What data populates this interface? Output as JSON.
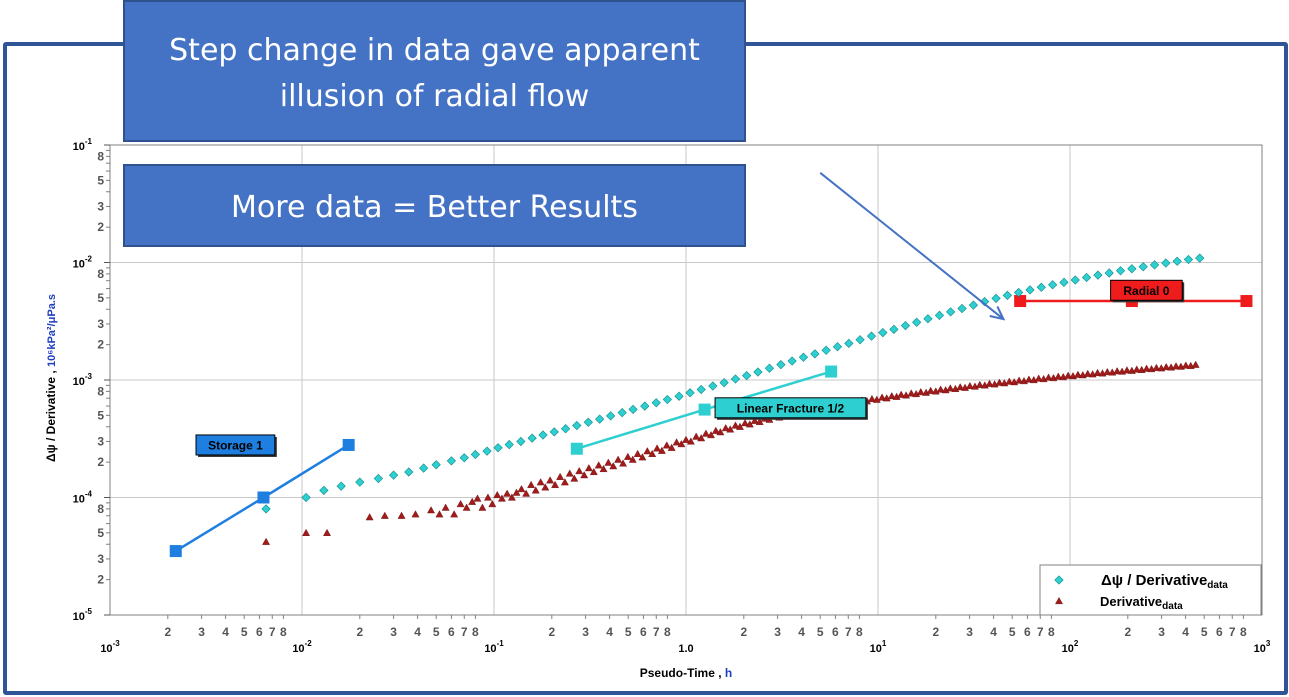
{
  "annotations": {
    "callout_main": "Step change in data gave apparent illusion of radial flow",
    "callout_secondary": "More data = Better Results"
  },
  "chart_data": {
    "type": "scatter",
    "x_scale": "log",
    "y_scale": "log",
    "xlim": [
      0.001,
      1000
    ],
    "ylim": [
      1e-05,
      0.1
    ],
    "grid": true,
    "title": "",
    "xlabel": "Pseudo-Time , h",
    "xlabel_main": "Pseudo-Time ,",
    "xlabel_unit": "h",
    "ylabel": "Δψ / Derivative , 10⁶kPa²/μPa.s",
    "ylabel_main": "Δψ / Derivative ,",
    "ylabel_unit": "10⁶kPa²/μPa.s",
    "x_major_ticks": [
      {
        "value": 0.001,
        "base": "10",
        "exp": "-3"
      },
      {
        "value": 0.01,
        "base": "10",
        "exp": "-2"
      },
      {
        "value": 0.1,
        "base": "10",
        "exp": "-1"
      },
      {
        "value": 1,
        "base": "1.0",
        "exp": ""
      },
      {
        "value": 10,
        "base": "10",
        "exp": "1"
      },
      {
        "value": 100,
        "base": "10",
        "exp": "2"
      },
      {
        "value": 1000,
        "base": "10",
        "exp": "3"
      }
    ],
    "y_major_ticks": [
      {
        "value": 1e-05,
        "base": "10",
        "exp": "-5"
      },
      {
        "value": 0.0001,
        "base": "10",
        "exp": "-4"
      },
      {
        "value": 0.001,
        "base": "10",
        "exp": "-3"
      },
      {
        "value": 0.01,
        "base": "10",
        "exp": "-2"
      },
      {
        "value": 0.1,
        "base": "10",
        "exp": "-1"
      }
    ],
    "x_minor_tick_digits": [
      "2",
      "3",
      "4",
      "5",
      "6",
      "7",
      "8"
    ],
    "y_minor_tick_digits": [
      "2",
      "3",
      "5",
      "8"
    ],
    "legend": {
      "position": "bottom-right",
      "entries": [
        {
          "label": "Δψ / Derivative",
          "subscript": "data",
          "marker": "diamond",
          "color": "#2ecfd0"
        },
        {
          "label": "Derivative",
          "subscript": "data",
          "marker": "triangle",
          "color": "#a11b1b"
        }
      ]
    },
    "series": [
      {
        "name": "Δψ / Derivative data",
        "marker": "diamond",
        "color": "#2ecfd0",
        "points": [
          [
            0.0065,
            8e-05
          ],
          [
            0.0105,
            0.0001
          ],
          [
            0.013,
            0.000115
          ],
          [
            0.016,
            0.000125
          ],
          [
            0.02,
            0.000135
          ],
          [
            0.025,
            0.000145
          ],
          [
            0.03,
            0.000155
          ],
          [
            0.036,
            0.000165
          ],
          [
            0.043,
            0.000178
          ],
          [
            0.05,
            0.00019
          ],
          [
            0.06,
            0.000205
          ],
          [
            0.07,
            0.000218
          ],
          [
            0.08,
            0.000232
          ],
          [
            0.092,
            0.000248
          ],
          [
            0.105,
            0.000265
          ],
          [
            0.12,
            0.000282
          ],
          [
            0.138,
            0.0003
          ],
          [
            0.158,
            0.00032
          ],
          [
            0.18,
            0.00034
          ],
          [
            0.206,
            0.000362
          ],
          [
            0.236,
            0.000385
          ],
          [
            0.27,
            0.00041
          ],
          [
            0.31,
            0.000437
          ],
          [
            0.355,
            0.000465
          ],
          [
            0.405,
            0.000495
          ],
          [
            0.465,
            0.000528
          ],
          [
            0.53,
            0.000562
          ],
          [
            0.61,
            0.0006
          ],
          [
            0.7,
            0.00064
          ],
          [
            0.8,
            0.000682
          ],
          [
            0.92,
            0.000728
          ],
          [
            1.05,
            0.000778
          ],
          [
            1.2,
            0.00083
          ],
          [
            1.38,
            0.000888
          ],
          [
            1.58,
            0.00095
          ],
          [
            1.81,
            0.00102
          ],
          [
            2.07,
            0.00109
          ],
          [
            2.37,
            0.00117
          ],
          [
            2.72,
            0.00126
          ],
          [
            3.12,
            0.00135
          ],
          [
            3.57,
            0.00145
          ],
          [
            4.09,
            0.00156
          ],
          [
            4.69,
            0.00167
          ],
          [
            5.37,
            0.00179
          ],
          [
            6.15,
            0.00192
          ],
          [
            7.05,
            0.00205
          ],
          [
            8.07,
            0.0022
          ],
          [
            9.25,
            0.00236
          ],
          [
            10.6,
            0.00253
          ],
          [
            12.1,
            0.0027
          ],
          [
            13.9,
            0.0029
          ],
          [
            15.9,
            0.0031
          ],
          [
            18.2,
            0.00332
          ],
          [
            20.9,
            0.00355
          ],
          [
            23.9,
            0.0038
          ],
          [
            27.4,
            0.00406
          ],
          [
            31.4,
            0.00434
          ],
          [
            35.9,
            0.00464
          ],
          [
            41.2,
            0.00495
          ],
          [
            47.2,
            0.00525
          ],
          [
            54,
            0.00555
          ],
          [
            61.9,
            0.00585
          ],
          [
            70.9,
            0.00615
          ],
          [
            81.2,
            0.00646
          ],
          [
            93,
            0.00678
          ],
          [
            106.5,
            0.0071
          ],
          [
            122,
            0.00745
          ],
          [
            139.8,
            0.0078
          ],
          [
            160,
            0.00815
          ],
          [
            183.4,
            0.0085
          ],
          [
            210,
            0.00885
          ],
          [
            240.6,
            0.0092
          ],
          [
            275.6,
            0.00955
          ],
          [
            315.7,
            0.0099
          ],
          [
            361.6,
            0.01025
          ],
          [
            414,
            0.0106
          ],
          [
            474,
            0.0109
          ]
        ]
      },
      {
        "name": "Derivative data",
        "marker": "triangle",
        "color": "#a11b1b",
        "points": [
          [
            0.0065,
            4.2e-05
          ],
          [
            0.0105,
            5e-05
          ],
          [
            0.0135,
            5e-05
          ],
          [
            0.0225,
            6.8e-05
          ],
          [
            0.027,
            7e-05
          ],
          [
            0.033,
            7e-05
          ],
          [
            0.039,
            7.2e-05
          ],
          [
            0.047,
            7.8e-05
          ],
          [
            0.052,
            7.2e-05
          ],
          [
            0.056,
            8.2e-05
          ],
          [
            0.062,
            7.2e-05
          ],
          [
            0.067,
            8.8e-05
          ],
          [
            0.072,
            8.2e-05
          ],
          [
            0.077,
            9.2e-05
          ],
          [
            0.082,
            9.8e-05
          ],
          [
            0.087,
            8.2e-05
          ],
          [
            0.093,
            0.0001
          ],
          [
            0.098,
            8.8e-05
          ],
          [
            0.104,
            0.000105
          ],
          [
            0.11,
            9.8e-05
          ],
          [
            0.117,
            0.000108
          ],
          [
            0.124,
            0.0001
          ],
          [
            0.131,
            0.00011
          ],
          [
            0.139,
            0.000118
          ],
          [
            0.147,
            0.000108
          ],
          [
            0.156,
            0.000128
          ],
          [
            0.165,
            0.000115
          ],
          [
            0.175,
            0.000135
          ],
          [
            0.185,
            0.000122
          ],
          [
            0.196,
            0.00014
          ],
          [
            0.208,
            0.000128
          ],
          [
            0.221,
            0.00015
          ],
          [
            0.234,
            0.000135
          ],
          [
            0.248,
            0.00016
          ],
          [
            0.262,
            0.000145
          ],
          [
            0.278,
            0.000168
          ],
          [
            0.295,
            0.000155
          ],
          [
            0.312,
            0.000178
          ],
          [
            0.331,
            0.000165
          ],
          [
            0.351,
            0.000188
          ],
          [
            0.372,
            0.000175
          ],
          [
            0.394,
            0.000198
          ],
          [
            0.418,
            0.000185
          ],
          [
            0.443,
            0.00021
          ],
          [
            0.47,
            0.000195
          ],
          [
            0.498,
            0.000222
          ],
          [
            0.528,
            0.00021
          ],
          [
            0.56,
            0.000235
          ],
          [
            0.593,
            0.00022
          ],
          [
            0.629,
            0.000248
          ],
          [
            0.667,
            0.000235
          ],
          [
            0.707,
            0.000262
          ],
          [
            0.749,
            0.00025
          ],
          [
            0.794,
            0.000278
          ],
          [
            0.842,
            0.000265
          ],
          [
            0.893,
            0.000295
          ],
          [
            0.946,
            0.000285
          ],
          [
            1.0,
            0.00031
          ],
          [
            1.06,
            0.0003
          ],
          [
            1.13,
            0.00033
          ],
          [
            1.2,
            0.00032
          ],
          [
            1.27,
            0.00035
          ],
          [
            1.35,
            0.00034
          ],
          [
            1.43,
            0.00037
          ],
          [
            1.51,
            0.00036
          ],
          [
            1.61,
            0.00039
          ],
          [
            1.7,
            0.00038
          ],
          [
            1.81,
            0.00041
          ],
          [
            1.91,
            0.0004
          ],
          [
            2.03,
            0.00043
          ],
          [
            2.15,
            0.00042
          ],
          [
            2.28,
            0.00045
          ],
          [
            2.42,
            0.00044
          ],
          [
            2.57,
            0.00047
          ],
          [
            2.72,
            0.00046
          ],
          [
            2.88,
            0.00049
          ],
          [
            3.06,
            0.00048
          ],
          [
            3.24,
            0.00051
          ],
          [
            3.44,
            0.0005
          ],
          [
            3.64,
            0.00053
          ],
          [
            3.86,
            0.00052
          ],
          [
            4.09,
            0.00055
          ],
          [
            4.34,
            0.00054
          ],
          [
            4.6,
            0.00057
          ],
          [
            4.88,
            0.00056
          ],
          [
            5.18,
            0.00059
          ],
          [
            5.49,
            0.00058
          ],
          [
            5.82,
            0.00061
          ],
          [
            6.17,
            0.0006
          ],
          [
            6.54,
            0.00063
          ],
          [
            6.94,
            0.00062
          ],
          [
            7.35,
            0.00065
          ],
          [
            7.8,
            0.00064
          ],
          [
            8.27,
            0.00067
          ],
          [
            8.77,
            0.00066
          ],
          [
            9.3,
            0.00069
          ],
          [
            9.86,
            0.00068
          ],
          [
            10.5,
            0.00071
          ],
          [
            11.1,
            0.0007
          ],
          [
            11.8,
            0.00073
          ],
          [
            12.5,
            0.00072
          ],
          [
            13.2,
            0.00075
          ],
          [
            14,
            0.00074
          ],
          [
            14.9,
            0.00077
          ],
          [
            15.8,
            0.00076
          ],
          [
            16.7,
            0.00079
          ],
          [
            17.8,
            0.00078
          ],
          [
            18.8,
            0.00081
          ],
          [
            20,
            0.0008
          ],
          [
            21.2,
            0.00083
          ],
          [
            22.5,
            0.00082
          ],
          [
            23.8,
            0.00085
          ],
          [
            25.3,
            0.00084
          ],
          [
            26.8,
            0.00087
          ],
          [
            28.4,
            0.00086
          ],
          [
            30.1,
            0.00089
          ],
          [
            32,
            0.00088
          ],
          [
            33.9,
            0.00091
          ],
          [
            36,
            0.0009
          ],
          [
            38.1,
            0.00093
          ],
          [
            40.5,
            0.00092
          ],
          [
            42.9,
            0.00095
          ],
          [
            45.5,
            0.00094
          ],
          [
            48.3,
            0.00097
          ],
          [
            51.2,
            0.00096
          ],
          [
            54.3,
            0.00099
          ],
          [
            57.6,
            0.00098
          ],
          [
            61.1,
            0.00101
          ],
          [
            64.8,
            0.001
          ],
          [
            68.7,
            0.00103
          ],
          [
            72.9,
            0.00102
          ],
          [
            77.3,
            0.00105
          ],
          [
            82,
            0.00104
          ],
          [
            86.9,
            0.00107
          ],
          [
            92.2,
            0.00106
          ],
          [
            97.8,
            0.00109
          ],
          [
            103.7,
            0.00108
          ],
          [
            110,
            0.00111
          ],
          [
            116.6,
            0.0011
          ],
          [
            123.7,
            0.00113
          ],
          [
            131.2,
            0.00112
          ],
          [
            139.1,
            0.00115
          ],
          [
            147.6,
            0.00114
          ],
          [
            156.5,
            0.00117
          ],
          [
            166,
            0.00116
          ],
          [
            176,
            0.00119
          ],
          [
            186.7,
            0.00118
          ],
          [
            198,
            0.00121
          ],
          [
            210,
            0.0012
          ],
          [
            222.7,
            0.00123
          ],
          [
            236.2,
            0.00122
          ],
          [
            250.5,
            0.00125
          ],
          [
            265.7,
            0.00124
          ],
          [
            281.8,
            0.00127
          ],
          [
            298.9,
            0.00126
          ],
          [
            317,
            0.00129
          ],
          [
            336.2,
            0.00128
          ],
          [
            356.6,
            0.00131
          ],
          [
            378.2,
            0.0013
          ],
          [
            401.1,
            0.00133
          ],
          [
            425.4,
            0.00132
          ],
          [
            451.2,
            0.00135
          ]
        ]
      }
    ],
    "fit_lines": [
      {
        "name": "Storage 1",
        "label": "Storage 1",
        "color": "#1e7fe0",
        "label_bg": "#1e7fe0",
        "label_value": [
          0.0045,
          0.00028
        ],
        "points": [
          [
            0.0022,
            3.5e-05
          ],
          [
            0.0063,
            0.0001
          ],
          [
            0.0175,
            0.00028
          ]
        ]
      },
      {
        "name": "Linear Fracture 1/2",
        "label": "Linear Fracture 1/2",
        "color": "#2ecfd0",
        "label_bg": "#2ecfd0",
        "label_value": [
          3.5,
          0.00058
        ],
        "points": [
          [
            0.27,
            0.00026
          ],
          [
            1.25,
            0.00056
          ],
          [
            5.7,
            0.00118
          ]
        ]
      },
      {
        "name": "Radial 0",
        "label": "Radial 0",
        "color": "#ee1c1c",
        "label_bg": "#ee1c1c",
        "label_value": [
          250,
          0.0058
        ],
        "points": [
          [
            55,
            0.0047
          ],
          [
            210,
            0.0047
          ],
          [
            830,
            0.0047
          ]
        ]
      }
    ],
    "arrow": {
      "from": [
        5,
        0.058
      ],
      "to": [
        45,
        0.0033
      ],
      "color": "#4472c4"
    }
  }
}
